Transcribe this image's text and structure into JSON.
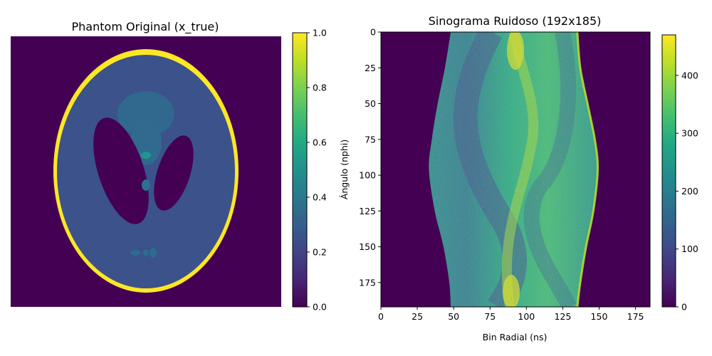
{
  "chart_data": [
    {
      "type": "heatmap",
      "title": "Phantom Original (x_true)",
      "xlabel": "",
      "ylabel": "",
      "axes_visible": false,
      "colormap": "viridis",
      "colorbar": {
        "vmin": 0.0,
        "vmax": 1.0,
        "ticks": [
          "0.0",
          "0.2",
          "0.4",
          "0.6",
          "0.8",
          "1.0"
        ]
      },
      "content": "Shepp-Logan phantom: outer ellipse intensity 1.0, brain 0.2, two dark ellipses 0.0, small blobs ~0.3-0.4"
    },
    {
      "type": "heatmap",
      "title": "Sinograma Ruidoso (192x185)",
      "xlabel": "Bin Radial (ns)",
      "ylabel": "Ángulo (nphi)",
      "colormap": "viridis",
      "x_ticks": [
        "0",
        "25",
        "50",
        "75",
        "100",
        "125",
        "150",
        "175"
      ],
      "y_ticks": [
        "0",
        "25",
        "50",
        "75",
        "100",
        "125",
        "150",
        "175"
      ],
      "xlim": [
        0,
        185
      ],
      "ylim": [
        192,
        0
      ],
      "colorbar": {
        "vmin": 0,
        "vmax": 470,
        "ticks": [
          "0",
          "100",
          "200",
          "300",
          "400"
        ]
      },
      "left_edge_bins": [
        [
          0,
          48
        ],
        [
          25,
          44
        ],
        [
          50,
          39
        ],
        [
          75,
          35
        ],
        [
          96,
          33
        ],
        [
          125,
          37
        ],
        [
          150,
          43
        ],
        [
          175,
          47
        ],
        [
          192,
          48
        ]
      ],
      "right_edge_bins": [
        [
          0,
          135
        ],
        [
          25,
          137
        ],
        [
          50,
          142
        ],
        [
          75,
          147
        ],
        [
          96,
          149
        ],
        [
          125,
          146
        ],
        [
          150,
          141
        ],
        [
          175,
          137
        ],
        [
          192,
          135
        ]
      ]
    }
  ]
}
